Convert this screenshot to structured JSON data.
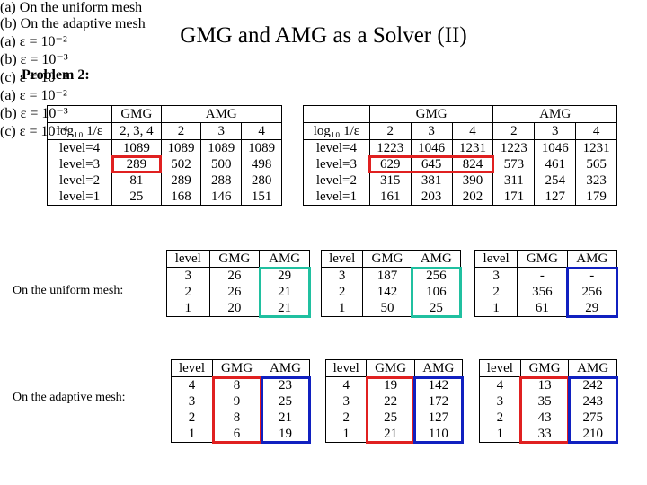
{
  "title": "GMG and AMG as a Solver (II)",
  "problem": "Problem 2:",
  "uniform_label": "On the uniform mesh:",
  "adaptive_label": "On the adaptive mesh:",
  "top_tables": [
    {
      "groups": [
        "GMG",
        "AMG"
      ],
      "columns": [
        "log₁₀ 1/ε",
        "2, 3, 4",
        "2",
        "3",
        "4"
      ],
      "rows": [
        [
          "level=4",
          1089,
          1089,
          1089,
          1089
        ],
        [
          "level=3",
          289,
          502,
          500,
          498
        ],
        [
          "level=2",
          81,
          289,
          288,
          280
        ],
        [
          "level=1",
          25,
          168,
          146,
          151
        ]
      ],
      "caption": "(a) On the uniform mesh"
    },
    {
      "groups": [
        "GMG",
        "AMG"
      ],
      "columns": [
        "log₁₀ 1/ε",
        "2",
        "3",
        "4",
        "2",
        "3",
        "4"
      ],
      "rows": [
        [
          "level=4",
          1223,
          1046,
          1231,
          1223,
          1046,
          1231
        ],
        [
          "level=3",
          629,
          645,
          824,
          573,
          461,
          565
        ],
        [
          "level=2",
          315,
          381,
          390,
          311,
          254,
          323
        ],
        [
          "level=1",
          161,
          203,
          202,
          171,
          127,
          179
        ]
      ],
      "caption": "(b) On the adaptive mesh"
    }
  ],
  "uniform_tables": [
    {
      "columns": [
        "level",
        "GMG",
        "AMG"
      ],
      "rows": [
        [
          3,
          26,
          29
        ],
        [
          2,
          26,
          21
        ],
        [
          1,
          20,
          21
        ]
      ],
      "caption": "(a) ε = 10⁻²"
    },
    {
      "columns": [
        "level",
        "GMG",
        "AMG"
      ],
      "rows": [
        [
          3,
          187,
          256
        ],
        [
          2,
          142,
          106
        ],
        [
          1,
          50,
          25
        ]
      ],
      "caption": "(b) ε = 10⁻³"
    },
    {
      "columns": [
        "level",
        "GMG",
        "AMG"
      ],
      "rows": [
        [
          3,
          "-",
          "-"
        ],
        [
          2,
          356,
          256
        ],
        [
          1,
          61,
          29
        ]
      ],
      "caption": "(c) ε = 10⁻⁴"
    }
  ],
  "adaptive_tables": [
    {
      "columns": [
        "level",
        "GMG",
        "AMG"
      ],
      "rows": [
        [
          4,
          8,
          23
        ],
        [
          3,
          9,
          25
        ],
        [
          2,
          8,
          21
        ],
        [
          1,
          6,
          19
        ]
      ],
      "caption": "(a) ε = 10⁻²"
    },
    {
      "columns": [
        "level",
        "GMG",
        "AMG"
      ],
      "rows": [
        [
          4,
          19,
          142
        ],
        [
          3,
          22,
          172
        ],
        [
          2,
          25,
          127
        ],
        [
          1,
          21,
          110
        ]
      ],
      "caption": "(b) ε = 10⁻³"
    },
    {
      "columns": [
        "level",
        "GMG",
        "AMG"
      ],
      "rows": [
        [
          4,
          13,
          242
        ],
        [
          3,
          35,
          243
        ],
        [
          2,
          43,
          275
        ],
        [
          1,
          33,
          210
        ]
      ],
      "caption": "(c) ε = 10⁻⁴"
    }
  ]
}
